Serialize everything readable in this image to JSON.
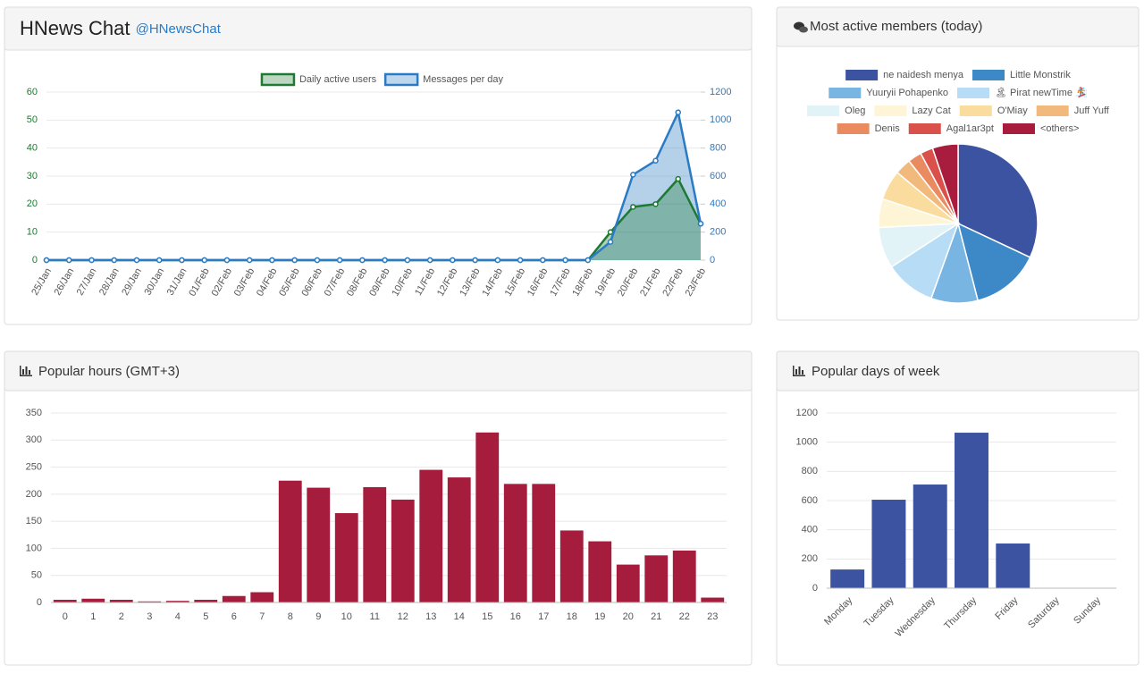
{
  "header": {
    "title": "HNews Chat",
    "handle": "@HNewsChat"
  },
  "chart_data": [
    {
      "type": "line",
      "categories": [
        "25/Jan",
        "26/Jan",
        "27/Jan",
        "28/Jan",
        "29/Jan",
        "30/Jan",
        "31/Jan",
        "01/Feb",
        "02/Feb",
        "03/Feb",
        "04/Feb",
        "05/Feb",
        "06/Feb",
        "07/Feb",
        "08/Feb",
        "09/Feb",
        "10/Feb",
        "11/Feb",
        "12/Feb",
        "13/Feb",
        "14/Feb",
        "15/Feb",
        "16/Feb",
        "17/Feb",
        "18/Feb",
        "19/Feb",
        "20/Feb",
        "21/Feb",
        "22/Feb",
        "23/Feb"
      ],
      "series": [
        {
          "name": "Daily active users",
          "color": "#1e7a32",
          "values": [
            0,
            0,
            0,
            0,
            0,
            0,
            0,
            0,
            0,
            0,
            0,
            0,
            0,
            0,
            0,
            0,
            0,
            0,
            0,
            0,
            0,
            0,
            0,
            0,
            0,
            10,
            19,
            20,
            29,
            13
          ]
        },
        {
          "name": "Messages per day",
          "color": "#2a7bc4",
          "axis": "y2",
          "values": [
            0,
            0,
            0,
            0,
            0,
            0,
            0,
            0,
            0,
            0,
            0,
            0,
            0,
            0,
            0,
            0,
            0,
            0,
            0,
            0,
            0,
            0,
            0,
            0,
            0,
            130,
            610,
            710,
            1055,
            260
          ]
        }
      ],
      "ylim": [
        0,
        60
      ],
      "yticks": [
        0,
        10,
        20,
        30,
        40,
        50,
        60
      ],
      "y2lim": [
        0,
        1200
      ],
      "y2ticks": [
        0,
        200,
        400,
        600,
        800,
        1000,
        1200
      ],
      "grid": true,
      "legend": "top"
    },
    {
      "type": "pie",
      "title": "Most active members (today)",
      "categories": [
        "ne naidesh menya",
        "Little Monstrik",
        "Yuuryii Pohapenko",
        "🏝 Pirat newTime 🏂",
        "Oleg",
        "Lazy Cat",
        "O'Miay",
        "Juff Yuff",
        "Denis",
        "Agal1ar3pt",
        "<others>"
      ],
      "values": [
        32,
        14,
        9.5,
        10.3,
        8.4,
        5.8,
        6.1,
        3.3,
        2.8,
        2.6,
        5.2
      ],
      "colors": [
        "#3b53a0",
        "#3d88c7",
        "#78b5e2",
        "#b7dcf5",
        "#e2f3f8",
        "#fdf5d5",
        "#fbdc9f",
        "#f2b97d",
        "#e98a60",
        "#d9514a",
        "#a81c3d"
      ],
      "legend": "top"
    },
    {
      "type": "bar",
      "title": "Popular hours (GMT+3)",
      "categories": [
        "0",
        "1",
        "2",
        "3",
        "4",
        "5",
        "6",
        "7",
        "8",
        "9",
        "10",
        "11",
        "12",
        "13",
        "14",
        "15",
        "16",
        "17",
        "18",
        "19",
        "20",
        "21",
        "22",
        "23"
      ],
      "values": [
        5,
        7,
        5,
        2,
        3,
        5,
        12,
        19,
        225,
        212,
        165,
        213,
        190,
        245,
        231,
        314,
        219,
        219,
        133,
        113,
        70,
        87,
        96,
        9
      ],
      "color": "#a61c3c",
      "ylim": [
        0,
        350
      ],
      "yticks": [
        0,
        50,
        100,
        150,
        200,
        250,
        300,
        350
      ],
      "grid": true
    },
    {
      "type": "bar",
      "title": "Popular days of week",
      "categories": [
        "Monday",
        "Tuesday",
        "Wednesday",
        "Thursday",
        "Friday",
        "Saturday",
        "Sunday"
      ],
      "values": [
        128,
        606,
        710,
        1065,
        306,
        0,
        0
      ],
      "color": "#3b53a0",
      "ylim": [
        0,
        1200
      ],
      "yticks": [
        0,
        200,
        400,
        600,
        800,
        1000,
        1200
      ],
      "grid": true
    }
  ]
}
